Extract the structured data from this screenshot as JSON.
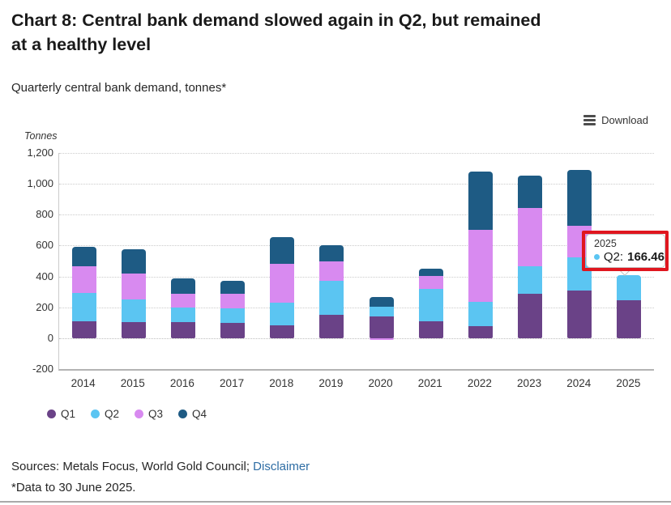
{
  "header": {
    "title": "Chart 8: Central bank demand slowed again in Q2, but remained at a healthy level",
    "title_lines": [
      "Chart 8: Central bank demand slowed again in Q2, but remained",
      "at a healthy level"
    ],
    "subtitle": "Quarterly central bank demand, tonnes*"
  },
  "toolbar": {
    "download_label": "Download"
  },
  "chart_data": {
    "type": "bar",
    "stacked": true,
    "title": "Quarterly central bank demand, tonnes*",
    "xlabel": "",
    "ylabel": "Tonnes",
    "ylim": [
      -200,
      1200
    ],
    "ytick_step": 200,
    "ytick_labels": [
      "1,200",
      "1,000",
      "800",
      "600",
      "400",
      "200",
      "0",
      "-200"
    ],
    "grid": "dotted-horizontal",
    "legend_position": "bottom-left",
    "categories": [
      "2014",
      "2015",
      "2016",
      "2017",
      "2018",
      "2019",
      "2020",
      "2021",
      "2022",
      "2023",
      "2024",
      "2025"
    ],
    "series": [
      {
        "name": "Q1",
        "color": "#6a4287",
        "values": [
          112,
          106,
          102,
          99,
          84,
          150,
          140,
          110,
          78,
          287,
          310,
          244
        ]
      },
      {
        "name": "Q2",
        "color": "#5bc5f2",
        "values": [
          179,
          143,
          94,
          93,
          145,
          222,
          63,
          210,
          156,
          177,
          212,
          166.46
        ]
      },
      {
        "name": "Q3",
        "color": "#d88af0",
        "values": [
          174,
          171,
          91,
          97,
          253,
          127,
          -10,
          85,
          470,
          379,
          206,
          null
        ]
      },
      {
        "name": "Q4",
        "color": "#1e5b84",
        "values": [
          126,
          157,
          99,
          83,
          172,
          106,
          62,
          45,
          377,
          211,
          362,
          null
        ]
      }
    ]
  },
  "tooltip": {
    "year": "2025",
    "series_label": "Q2:",
    "value": "166.46",
    "dot_color": "#5bc5f2",
    "highlight_color": "#e0161f"
  },
  "footer": {
    "sources_prefix": "Sources: Metals Focus, World Gold Council; ",
    "disclaimer_label": "Disclaimer",
    "link_color": "#2e6da4",
    "note": "*Data to 30 June 2025."
  }
}
